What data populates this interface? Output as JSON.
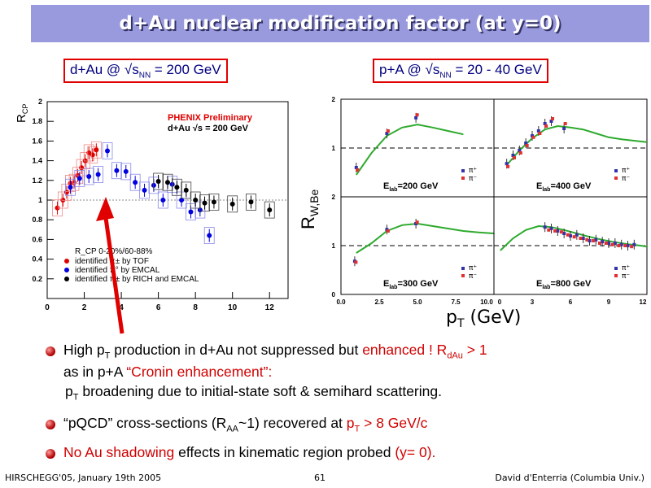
{
  "title": "d+Au nuclear modification factor (at y=0)",
  "left_label": {
    "prefix": "d+Au @ √s",
    "sub": "NN",
    "suffix": " = 200 GeV"
  },
  "right_label": {
    "prefix": "p+A @ √s",
    "sub": "NN",
    "suffix": " = 20 - 40 GeV"
  },
  "chart_data": [
    {
      "type": "scatter",
      "title": "PHENIX Preliminary",
      "subtitle": "d+Au √s = 200 GeV",
      "ylabel": "R",
      "ylabel_sub": "CP",
      "xlim": [
        0,
        13
      ],
      "ylim": [
        0,
        2
      ],
      "xticks": [
        "0",
        "2",
        "4",
        "6",
        "8",
        "10",
        "12"
      ],
      "yticks": [
        "0.2",
        "0.4",
        "0.6",
        "0.8",
        "1",
        "1.2",
        "1.4",
        "1.6",
        "1.8",
        "2"
      ],
      "legend_header": "R_CP 0-20%/60-88%",
      "series": [
        {
          "name": "identified π± by TOF",
          "color": "#e00000",
          "x": [
            0.55,
            0.85,
            1.05,
            1.25,
            1.45,
            1.65,
            1.85,
            2.05,
            2.25,
            2.45,
            2.65
          ],
          "y": [
            0.92,
            1.0,
            1.08,
            1.17,
            1.18,
            1.25,
            1.33,
            1.4,
            1.48,
            1.46,
            1.51
          ]
        },
        {
          "name": "identified π° by EMCAL",
          "color": "#0000e0",
          "x": [
            1.25,
            1.75,
            2.25,
            2.75,
            3.25,
            3.75,
            4.25,
            4.75,
            5.25,
            5.75,
            6.25,
            6.75,
            7.25,
            7.75,
            8.25,
            8.75
          ],
          "y": [
            1.13,
            1.22,
            1.24,
            1.26,
            1.5,
            1.3,
            1.29,
            1.18,
            1.1,
            1.15,
            1.0,
            1.16,
            1.0,
            0.88,
            0.9,
            0.64
          ]
        },
        {
          "name": "identified π± by RICH and EMCAL",
          "color": "#000000",
          "x": [
            6.0,
            6.5,
            7.0,
            7.5,
            8.0,
            8.5,
            9.0,
            10.0,
            11.0,
            12.0
          ],
          "y": [
            1.19,
            1.18,
            1.13,
            1.1,
            1.0,
            0.97,
            0.98,
            0.96,
            0.98,
            0.9
          ]
        }
      ]
    },
    {
      "type": "line",
      "ylabel": "R",
      "ylabel_sub": "W,Be",
      "xlabel": "p",
      "xlabel_sub": "T",
      "xlabel_suffix": " (GeV)",
      "ylim": [
        0,
        2
      ],
      "left_xticks": [
        "0.0",
        "2.5",
        "5.0",
        "7.5",
        "10.0"
      ],
      "right_xticks": [
        "0",
        "3",
        "6",
        "9",
        "12"
      ],
      "yticks": [
        "0",
        "1",
        "2"
      ],
      "legend": [
        "π⁺",
        "π⁻"
      ],
      "panels": [
        {
          "label": "E",
          "label_sub": "lab",
          "label_val": "=200  GeV",
          "xlim": [
            0,
            10
          ],
          "curve_x": [
            1,
            2,
            3,
            4,
            5,
            6,
            7,
            8
          ],
          "curve_y": [
            0.45,
            0.9,
            1.25,
            1.42,
            1.48,
            1.42,
            1.35,
            1.28
          ],
          "pi_plus_x": [
            1.0,
            3.0,
            4.9
          ],
          "pi_plus_y": [
            0.6,
            1.3,
            1.62
          ],
          "pi_minus_x": [
            1.0,
            3.0,
            4.9
          ],
          "pi_minus_y": [
            0.55,
            1.35,
            1.68
          ]
        },
        {
          "label": "E",
          "label_sub": "lab",
          "label_val": "=400  GeV",
          "xlim": [
            0,
            12
          ],
          "curve_x": [
            1,
            2,
            3,
            4,
            5,
            6,
            7,
            8,
            9,
            10,
            11,
            12
          ],
          "curve_y": [
            0.65,
            0.95,
            1.2,
            1.38,
            1.45,
            1.42,
            1.38,
            1.3,
            1.22,
            1.18,
            1.15,
            1.12
          ],
          "pi_plus_x": [
            1.0,
            1.5,
            2.0,
            2.5,
            3.0,
            3.5,
            4.0,
            4.5,
            5.5
          ],
          "pi_plus_y": [
            0.68,
            0.85,
            0.95,
            1.1,
            1.25,
            1.35,
            1.5,
            1.55,
            1.4
          ],
          "pi_minus_x": [
            1.0,
            1.5,
            2.0,
            2.5,
            3.0,
            3.5,
            4.0,
            4.5,
            5.5
          ],
          "pi_minus_y": [
            0.62,
            0.8,
            0.9,
            1.05,
            1.22,
            1.3,
            1.45,
            1.6,
            1.5
          ]
        },
        {
          "label": "E",
          "label_sub": "lab",
          "label_val": "=300  GeV",
          "xlim": [
            0,
            10
          ],
          "curve_x": [
            1,
            2,
            3,
            4,
            5,
            6,
            7,
            8,
            9,
            10
          ],
          "curve_y": [
            0.85,
            1.05,
            1.3,
            1.42,
            1.45,
            1.4,
            1.35,
            1.3,
            1.27,
            1.25
          ],
          "pi_plus_x": [
            0.9,
            3.0,
            4.9
          ],
          "pi_plus_y": [
            0.68,
            1.33,
            1.45
          ],
          "pi_minus_x": [
            0.9,
            3.0,
            4.9
          ],
          "pi_minus_y": [
            0.66,
            1.3,
            1.48
          ]
        },
        {
          "label": "E",
          "label_sub": "lab",
          "label_val": "=800  GeV",
          "xlim": [
            0,
            12
          ],
          "curve_x": [
            0.5,
            1.5,
            2.5,
            3.5,
            4.5,
            5.5,
            6.5,
            7.5,
            8.5,
            9.5,
            10.5,
            11.5,
            12
          ],
          "curve_y": [
            0.9,
            1.15,
            1.32,
            1.4,
            1.38,
            1.32,
            1.25,
            1.18,
            1.12,
            1.07,
            1.03,
            1.0,
            0.98
          ],
          "pi_plus_x": [
            4.0,
            4.5,
            5.0,
            5.5,
            6.0,
            6.5,
            7.0,
            7.5,
            8.0,
            8.5,
            9.0,
            9.5,
            10.0,
            10.5,
            11.0
          ],
          "pi_plus_y": [
            1.38,
            1.35,
            1.3,
            1.25,
            1.2,
            1.22,
            1.15,
            1.1,
            1.12,
            1.08,
            1.05,
            1.05,
            1.02,
            1.0,
            1.02
          ],
          "pi_minus_x": [
            4.2,
            4.7,
            5.2,
            5.7,
            6.2,
            6.7,
            7.2,
            7.7,
            8.2,
            8.7,
            9.2,
            9.7,
            10.2,
            10.7
          ],
          "pi_minus_y": [
            1.32,
            1.3,
            1.28,
            1.22,
            1.18,
            1.15,
            1.12,
            1.1,
            1.05,
            1.05,
            1.02,
            1.0,
            1.0,
            0.98
          ]
        }
      ]
    }
  ],
  "bullets": {
    "b1": {
      "t1": "High p",
      "t1sub": "T",
      "t2": " production in d+Au not suppressed but ",
      "t3": "enhanced !",
      "t4": "   R",
      "t4sub": "dAu",
      "t5": " > 1"
    },
    "b1_line2": {
      "t1": "as in p+A ",
      "t2": "“Cronin enhancement”:"
    },
    "b1_line3": {
      "t1": "p",
      "t1sub": "T",
      "t2": " broadening due to initial-state soft & semihard scattering."
    },
    "b2": {
      "t1": "“pQCD” cross-sections (R",
      "t1sub": "AA",
      "t2": "~1) recovered at ",
      "t3": "p",
      "t3sub": "T",
      "t4": " > 8 GeV/c"
    },
    "b3": {
      "t1": "No Au shadowing",
      "t2": " effects in kinematic region probed ",
      "t3": "(y= 0)."
    }
  },
  "footer": {
    "left": "HIRSCHEGG'05, January 19th 2005",
    "center": "61",
    "right": "David d'Enterria (Columbia Univ.)"
  },
  "colors": {
    "title_bg": "#9999dd",
    "accent_red": "#d00000",
    "label_text": "#000080",
    "curve_green": "#2eaa2e"
  }
}
